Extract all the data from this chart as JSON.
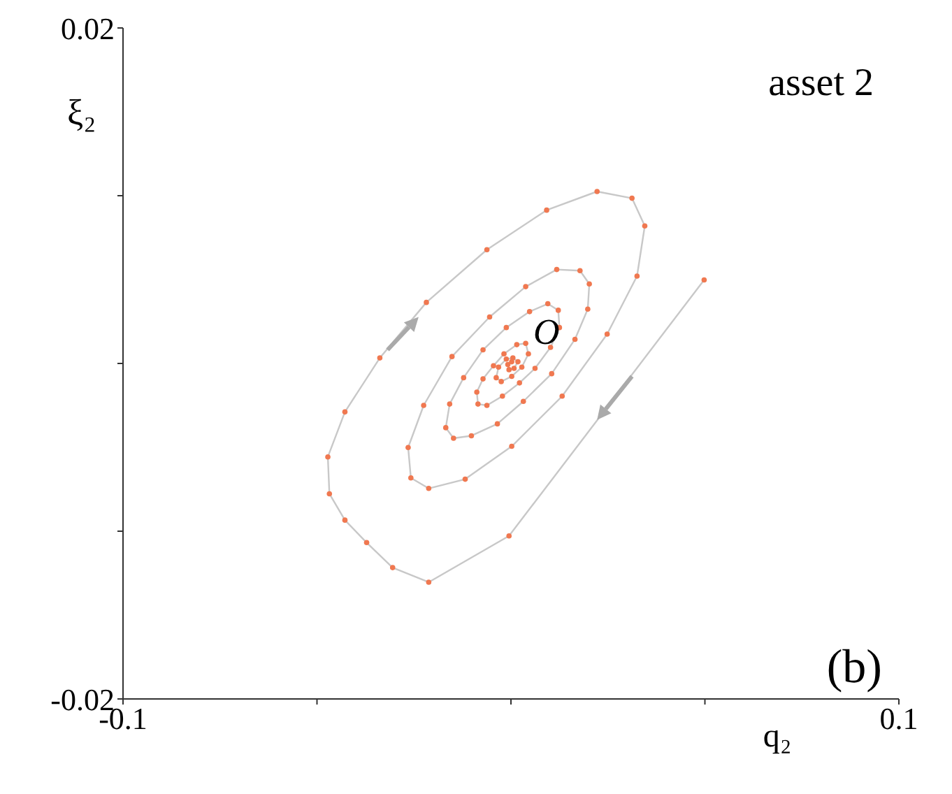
{
  "chart_data": {
    "type": "line",
    "xlabel": "q₂",
    "ylabel": "ξ₂",
    "xlim": [
      -0.1,
      0.1
    ],
    "ylim": [
      -0.02,
      0.02
    ],
    "xticks": [
      -0.1,
      {
        "value": -0.05,
        "label": null
      },
      {
        "value": 0,
        "label": null
      },
      {
        "value": 0.05,
        "label": null
      },
      0.1
    ],
    "yticks": [
      -0.02,
      {
        "value": -0.01,
        "label": null
      },
      {
        "value": 0,
        "label": null
      },
      {
        "value": 0.01,
        "label": null
      },
      0.02
    ],
    "grid": false,
    "legend": false,
    "marker": "circle",
    "line_style": "solid",
    "annotations": [
      "asset 2",
      "(b)",
      {
        "text": "O",
        "x": 0,
        "y": 0
      }
    ],
    "series": [
      {
        "color": "#f07850",
        "x": [
          0.0498,
          -0.0005,
          -0.0212,
          -0.0305,
          -0.0372,
          -0.0428,
          -0.0468,
          -0.0472,
          -0.0428,
          -0.0338,
          -0.0218,
          -0.0062,
          0.0092,
          0.0222,
          0.0312,
          0.0345,
          0.0325,
          0.0248,
          0.0132,
          0.0002,
          -0.0118,
          -0.0212,
          -0.0258,
          -0.0265,
          -0.0225,
          -0.0152,
          -0.0055,
          0.0038,
          0.0118,
          0.0178,
          0.0202,
          0.0198,
          0.0165,
          0.0105,
          0.0032,
          -0.0035,
          -0.0102,
          -0.0148,
          -0.0168,
          -0.0158,
          -0.0122,
          -0.0072,
          -0.0012,
          0.0048,
          0.0095,
          0.0122,
          0.0125,
          0.0102,
          0.0062,
          0.0022,
          -0.0022,
          -0.0062,
          -0.0085,
          -0.0088,
          -0.0072,
          -0.0045,
          -0.0018,
          0.0015,
          0.0038,
          0.0045,
          0.0028,
          0.0002,
          -0.0025,
          -0.0038,
          -0.0032,
          -0.0012,
          0.0005,
          0.0018,
          0.0008,
          -0.0005,
          -0.0008,
          0.0002
        ],
        "values": [
          0.00498,
          -0.01028,
          -0.01304,
          -0.01217,
          -0.01068,
          -0.00934,
          -0.00777,
          -0.00557,
          -0.00289,
          0.00033,
          0.00364,
          0.00678,
          0.00914,
          0.01025,
          0.00985,
          0.0082,
          0.00521,
          0.00175,
          -0.00195,
          -0.00494,
          -0.0069,
          -0.00745,
          -0.00682,
          -0.00501,
          -0.0025,
          0.00041,
          0.00277,
          0.00458,
          0.0056,
          0.00553,
          0.00474,
          0.00324,
          0.00144,
          -0.00061,
          -0.00226,
          -0.0036,
          -0.00431,
          -0.00446,
          -0.00383,
          -0.00242,
          -0.00085,
          0.00081,
          0.00214,
          0.00309,
          0.00356,
          0.00317,
          0.00214,
          0.00096,
          -0.00029,
          -0.00116,
          -0.00195,
          -0.0025,
          -0.00242,
          -0.00171,
          -0.00092,
          -0.00014,
          0.00057,
          0.00112,
          0.0012,
          0.00057,
          -0.00022,
          -0.00077,
          -0.00108,
          -0.00085,
          -0.00022,
          0.00026,
          0.00033,
          0.0001,
          -0.00029,
          -0.00037,
          -6e-05,
          0.0001
        ]
      }
    ]
  }
}
